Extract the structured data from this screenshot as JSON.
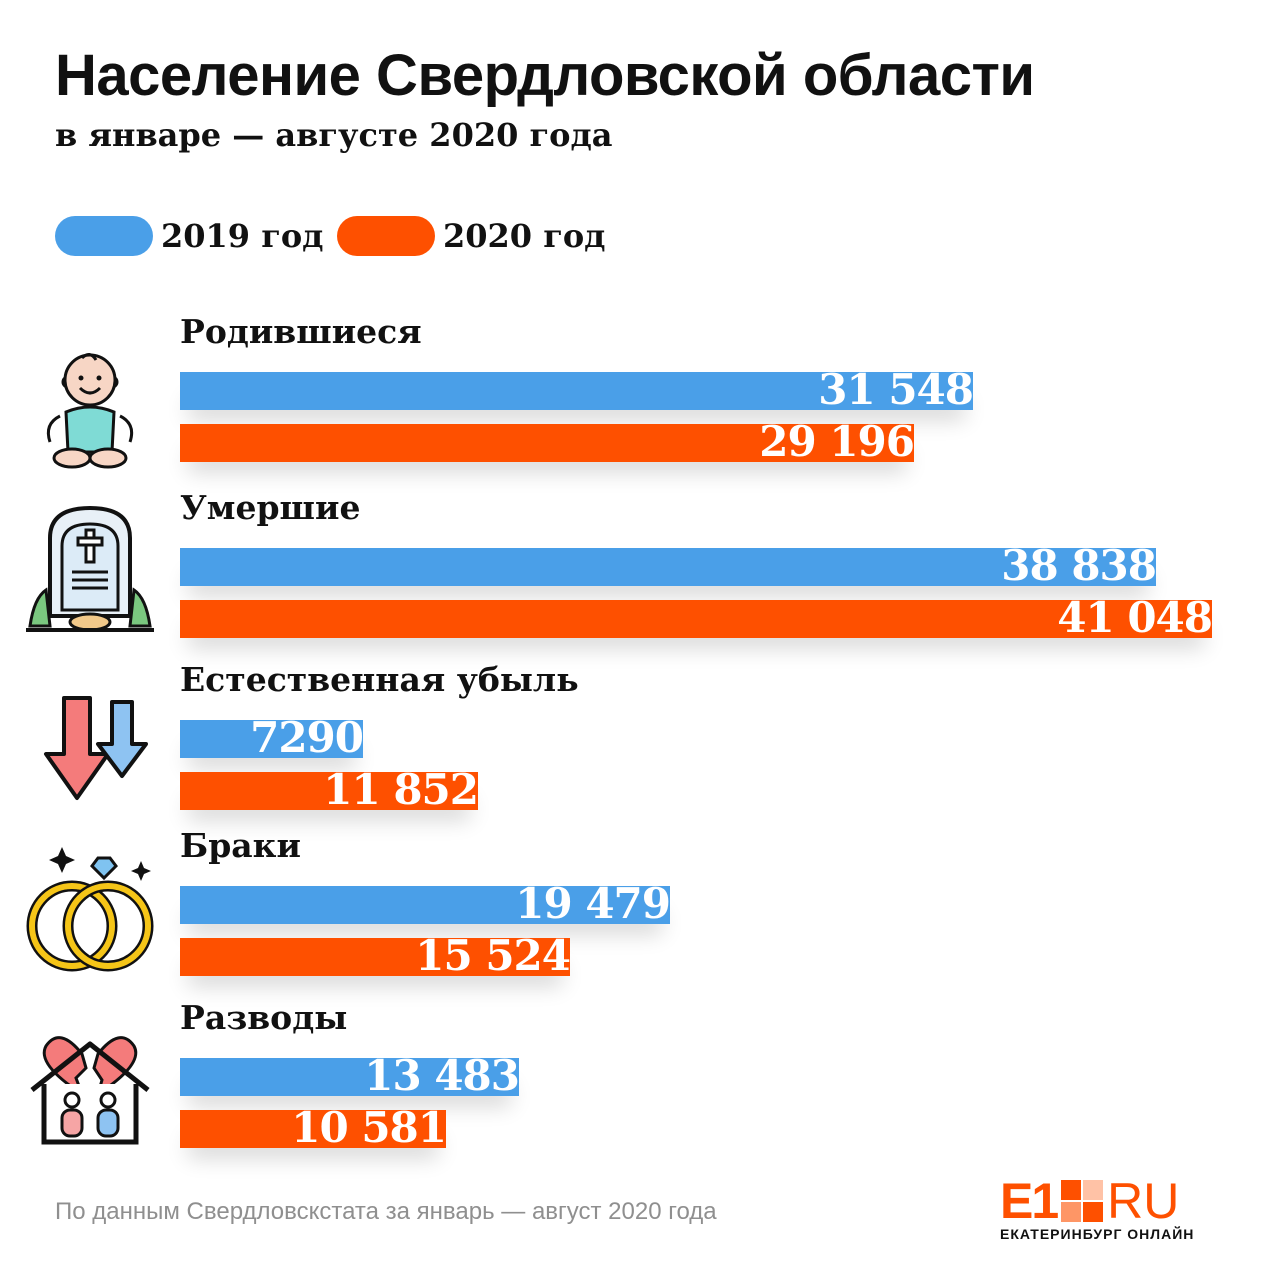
{
  "colors": {
    "series_2019": "#4a9fe8",
    "series_2020": "#fe5000",
    "brand": "#fe5000"
  },
  "header": {
    "title": "Население Свердловской области",
    "subtitle": "в январе — августе 2020 года"
  },
  "legend": [
    {
      "label": "2019 год",
      "color": "#4a9fe8"
    },
    {
      "label": "2020 год",
      "color": "#fe5000"
    }
  ],
  "chart_data": {
    "type": "bar",
    "orientation": "horizontal",
    "title": "Население Свердловской области",
    "subtitle": "в январе — августе 2020 года",
    "categories": [
      "Родившиеся",
      "Умершие",
      "Естественная убыль",
      "Браки",
      "Разводы"
    ],
    "series": [
      {
        "name": "2019 год",
        "color": "#4a9fe8",
        "values": [
          31548,
          38838,
          7290,
          19479,
          13483
        ],
        "labels": [
          "31 548",
          "38 838",
          "7290",
          "19 479",
          "13 483"
        ]
      },
      {
        "name": "2020 год",
        "color": "#fe5000",
        "values": [
          29196,
          41048,
          11852,
          15524,
          10581
        ],
        "labels": [
          "29 196",
          "41 048",
          "11 852",
          "15 524",
          "10 581"
        ]
      }
    ],
    "icons": [
      "baby-icon",
      "tombstone-icon",
      "decline-arrows-icon",
      "wedding-rings-icon",
      "broken-family-icon"
    ],
    "xlim": [
      0,
      41048
    ],
    "grid": false,
    "legend_position": "top-left"
  },
  "footer": {
    "source": "По данным Свердловскстата за январь — август 2020 года",
    "logo_main": "E1",
    "logo_ru": "RU",
    "logo_tagline": "ЕКАТЕРИНБУРГ ОНЛАЙН"
  }
}
